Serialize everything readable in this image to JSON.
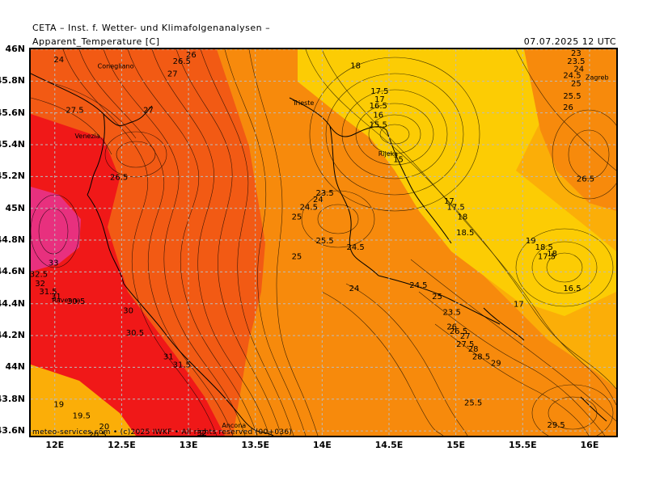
{
  "header": {
    "title": "CETA – Inst. f. Wetter- und Klimafolgenanalysen –",
    "parameter": "Apparent_Temperature [C]",
    "datetime": "07.07.2025 12 UTC"
  },
  "footer": {
    "credit": "meteo-services.com • (c)2025 IWKF • All rights reserved (00+036)"
  },
  "axes": {
    "lat_labels": [
      "46N",
      "45.8N",
      "45.6N",
      "45.4N",
      "45.2N",
      "45N",
      "44.8N",
      "44.6N",
      "44.4N",
      "44.2N",
      "44N",
      "43.8N",
      "43.6N"
    ],
    "lon_labels": [
      "12E",
      "12.5E",
      "13E",
      "13.5E",
      "14E",
      "14.5E",
      "15E",
      "15.5E",
      "16E"
    ],
    "lon_range": [
      11.82,
      16.2
    ],
    "lat_range": [
      43.57,
      46.0
    ]
  },
  "colors": {
    "magenta": "#e8307e",
    "red": "#f01818",
    "dark_orange": "#f25a14",
    "orange": "#f78a0c",
    "light_orange": "#fbae08",
    "yellow": "#fccc04",
    "grid": "#bbbbbb"
  },
  "places": [
    {
      "name": "Conegliano",
      "lon": 12.32,
      "lat": 45.88
    },
    {
      "name": "Venezia",
      "lon": 12.15,
      "lat": 45.44
    },
    {
      "name": "Trieste",
      "lon": 13.78,
      "lat": 45.65
    },
    {
      "name": "Rijeka",
      "lon": 14.42,
      "lat": 45.33
    },
    {
      "name": "Zagreb",
      "lon": 15.97,
      "lat": 45.81
    },
    {
      "name": "Ravenna",
      "lon": 11.98,
      "lat": 44.41
    },
    {
      "name": "Ancona",
      "lon": 13.25,
      "lat": 43.62
    }
  ],
  "contour_labels": [
    {
      "v": "26",
      "lon": 13.02,
      "lat": 45.97
    },
    {
      "v": "24",
      "lon": 12.03,
      "lat": 45.94
    },
    {
      "v": "26.5",
      "lon": 12.95,
      "lat": 45.93
    },
    {
      "v": "27",
      "lon": 12.88,
      "lat": 45.85
    },
    {
      "v": "27.5",
      "lon": 12.15,
      "lat": 45.62
    },
    {
      "v": "27",
      "lon": 12.7,
      "lat": 45.62
    },
    {
      "v": "26.5",
      "lon": 12.48,
      "lat": 45.2
    },
    {
      "v": "33",
      "lon": 11.99,
      "lat": 44.66
    },
    {
      "v": "32.5",
      "lon": 11.88,
      "lat": 44.59
    },
    {
      "v": "32",
      "lon": 11.89,
      "lat": 44.53
    },
    {
      "v": "31.5",
      "lon": 11.95,
      "lat": 44.48
    },
    {
      "v": "31",
      "lon": 12.01,
      "lat": 44.45
    },
    {
      "v": "30.5",
      "lon": 12.16,
      "lat": 44.42
    },
    {
      "v": "30",
      "lon": 12.55,
      "lat": 44.36
    },
    {
      "v": "30.5",
      "lon": 12.6,
      "lat": 44.22
    },
    {
      "v": "31",
      "lon": 12.85,
      "lat": 44.07
    },
    {
      "v": "31.5",
      "lon": 12.95,
      "lat": 44.02
    },
    {
      "v": "32",
      "lon": 13.1,
      "lat": 43.59
    },
    {
      "v": "19",
      "lon": 12.03,
      "lat": 43.77
    },
    {
      "v": "19.5",
      "lon": 12.2,
      "lat": 43.7
    },
    {
      "v": "20",
      "lon": 12.37,
      "lat": 43.63
    },
    {
      "v": "20.5",
      "lon": 12.32,
      "lat": 43.58
    },
    {
      "v": "18",
      "lon": 14.25,
      "lat": 45.9
    },
    {
      "v": "17.5",
      "lon": 14.43,
      "lat": 45.74
    },
    {
      "v": "17",
      "lon": 14.43,
      "lat": 45.69
    },
    {
      "v": "16.5",
      "lon": 14.42,
      "lat": 45.65
    },
    {
      "v": "16",
      "lon": 14.42,
      "lat": 45.59
    },
    {
      "v": "15.5",
      "lon": 14.42,
      "lat": 45.53
    },
    {
      "v": "15",
      "lon": 14.57,
      "lat": 45.31
    },
    {
      "v": "23.5",
      "lon": 14.02,
      "lat": 45.1
    },
    {
      "v": "24",
      "lon": 13.97,
      "lat": 45.06
    },
    {
      "v": "24.5",
      "lon": 13.9,
      "lat": 45.01
    },
    {
      "v": "25",
      "lon": 13.81,
      "lat": 44.95
    },
    {
      "v": "25.5",
      "lon": 14.02,
      "lat": 44.8
    },
    {
      "v": "24.5",
      "lon": 14.25,
      "lat": 44.76
    },
    {
      "v": "25",
      "lon": 13.81,
      "lat": 44.7
    },
    {
      "v": "24",
      "lon": 14.24,
      "lat": 44.5
    },
    {
      "v": "24.5",
      "lon": 14.72,
      "lat": 44.52
    },
    {
      "v": "25",
      "lon": 14.86,
      "lat": 44.45
    },
    {
      "v": "23.5",
      "lon": 14.97,
      "lat": 44.35
    },
    {
      "v": "17",
      "lon": 14.95,
      "lat": 45.05
    },
    {
      "v": "17.5",
      "lon": 15.0,
      "lat": 45.01
    },
    {
      "v": "18",
      "lon": 15.05,
      "lat": 44.95
    },
    {
      "v": "18.5",
      "lon": 15.07,
      "lat": 44.85
    },
    {
      "v": "19",
      "lon": 15.56,
      "lat": 44.8
    },
    {
      "v": "18.5",
      "lon": 15.66,
      "lat": 44.76
    },
    {
      "v": "18",
      "lon": 15.72,
      "lat": 44.72
    },
    {
      "v": "17.5",
      "lon": 15.68,
      "lat": 44.7
    },
    {
      "v": "16.5",
      "lon": 15.87,
      "lat": 44.5
    },
    {
      "v": "17",
      "lon": 15.47,
      "lat": 44.4
    },
    {
      "v": "26",
      "lon": 14.97,
      "lat": 44.26
    },
    {
      "v": "26.5",
      "lon": 15.02,
      "lat": 44.23
    },
    {
      "v": "27",
      "lon": 15.07,
      "lat": 44.2
    },
    {
      "v": "27.5",
      "lon": 15.07,
      "lat": 44.15
    },
    {
      "v": "28",
      "lon": 15.13,
      "lat": 44.12
    },
    {
      "v": "28.5",
      "lon": 15.19,
      "lat": 44.07
    },
    {
      "v": "29",
      "lon": 15.3,
      "lat": 44.03
    },
    {
      "v": "25.5",
      "lon": 15.13,
      "lat": 43.78
    },
    {
      "v": "29.5",
      "lon": 15.75,
      "lat": 43.64
    },
    {
      "v": "23",
      "lon": 15.9,
      "lat": 45.98
    },
    {
      "v": "23.5",
      "lon": 15.9,
      "lat": 45.93
    },
    {
      "v": "24",
      "lon": 15.92,
      "lat": 45.88
    },
    {
      "v": "24.5",
      "lon": 15.87,
      "lat": 45.84
    },
    {
      "v": "25",
      "lon": 15.9,
      "lat": 45.79
    },
    {
      "v": "25.5",
      "lon": 15.87,
      "lat": 45.71
    },
    {
      "v": "26",
      "lon": 15.84,
      "lat": 45.64
    },
    {
      "v": "26.5",
      "lon": 15.97,
      "lat": 45.19
    }
  ]
}
